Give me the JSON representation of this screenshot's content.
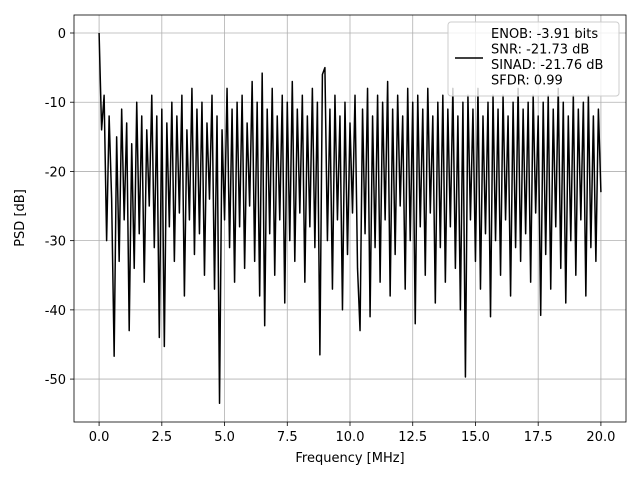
{
  "chart_data": {
    "type": "line",
    "xlabel": "Frequency [MHz]",
    "ylabel": "PSD [dB]",
    "x": [
      0,
      0.1,
      0.2,
      0.3,
      0.4,
      0.5,
      0.6,
      0.7,
      0.8,
      0.9,
      1,
      1.1,
      1.2,
      1.3,
      1.4,
      1.5,
      1.6,
      1.7,
      1.8,
      1.9,
      2,
      2.1,
      2.2,
      2.3,
      2.4,
      2.5,
      2.6,
      2.7,
      2.8,
      2.9,
      3,
      3.1,
      3.2,
      3.3,
      3.4,
      3.5,
      3.6,
      3.7,
      3.8,
      3.9,
      4,
      4.1,
      4.2,
      4.3,
      4.4,
      4.5,
      4.6,
      4.7,
      4.8,
      4.9,
      5,
      5.1,
      5.2,
      5.3,
      5.4,
      5.5,
      5.6,
      5.7,
      5.8,
      5.9,
      6,
      6.1,
      6.2,
      6.3,
      6.4,
      6.5,
      6.6,
      6.7,
      6.8,
      6.9,
      7,
      7.1,
      7.2,
      7.3,
      7.4,
      7.5,
      7.6,
      7.7,
      7.8,
      7.9,
      8,
      8.1,
      8.2,
      8.3,
      8.4,
      8.5,
      8.6,
      8.7,
      8.8,
      8.9,
      9,
      9.1,
      9.2,
      9.3,
      9.4,
      9.5,
      9.6,
      9.7,
      9.8,
      9.9,
      10,
      10.1,
      10.2,
      10.3,
      10.4,
      10.5,
      10.6,
      10.7,
      10.8,
      10.9,
      11,
      11.1,
      11.2,
      11.3,
      11.4,
      11.5,
      11.6,
      11.7,
      11.8,
      11.9,
      12,
      12.1,
      12.2,
      12.3,
      12.4,
      12.5,
      12.6,
      12.7,
      12.8,
      12.9,
      13,
      13.1,
      13.2,
      13.3,
      13.4,
      13.5,
      13.6,
      13.7,
      13.8,
      13.9,
      14,
      14.1,
      14.2,
      14.3,
      14.4,
      14.5,
      14.6,
      14.7,
      14.8,
      14.9,
      15,
      15.1,
      15.2,
      15.3,
      15.4,
      15.5,
      15.6,
      15.7,
      15.8,
      15.9,
      16,
      16.1,
      16.2,
      16.3,
      16.4,
      16.5,
      16.6,
      16.7,
      16.8,
      16.9,
      17,
      17.1,
      17.2,
      17.3,
      17.4,
      17.5,
      17.6,
      17.7,
      17.8,
      17.9,
      18,
      18.1,
      18.2,
      18.3,
      18.4,
      18.5,
      18.6,
      18.7,
      18.8,
      18.9,
      19,
      19.1,
      19.2,
      19.3,
      19.4,
      19.5,
      19.6,
      19.7,
      19.8,
      19.9,
      20
    ],
    "series": [
      {
        "name": "ENOB: -3.91 bits\nSNR: -21.73 dB\nSINAD: -21.76 dB\nSFDR: 0.99",
        "color": "#000000",
        "values": [
          0,
          -14,
          -9,
          -30,
          -12,
          -24,
          -46.7,
          -15,
          -33,
          -11,
          -27,
          -13,
          -43,
          -16,
          -34,
          -10,
          -29,
          -12,
          -36,
          -14,
          -25,
          -9,
          -31,
          -12,
          -44,
          -11,
          -45.3,
          -13,
          -28,
          -10,
          -33,
          -12,
          -26,
          -9,
          -38,
          -14,
          -27,
          -8,
          -32,
          -11,
          -29,
          -10,
          -35,
          -13,
          -24,
          -9,
          -37,
          -12,
          -53.5,
          -14,
          -27,
          -8,
          -31,
          -11,
          -36,
          -10,
          -28,
          -9,
          -34,
          -13,
          -25,
          -7,
          -33,
          -10,
          -38,
          -5.8,
          -42.3,
          -11,
          -29,
          -8,
          -35,
          -12,
          -27,
          -9,
          -39,
          -10,
          -30,
          -7,
          -33,
          -11,
          -26,
          -9,
          -36,
          -12,
          -28,
          -8,
          -31,
          -10,
          -46.5,
          -6,
          -5,
          -30,
          -11,
          -37,
          -9,
          -27,
          -12,
          -40,
          -10,
          -32,
          -13,
          -26,
          -9,
          -34,
          -43,
          -11,
          -29,
          -8,
          -41,
          -12,
          -31,
          -9,
          -36,
          -10,
          -27,
          -7,
          -38,
          -11,
          -32,
          -9,
          -25,
          -12,
          -37,
          -8,
          -30,
          -10,
          -42,
          -9,
          -28,
          -11,
          -35,
          -8,
          -26,
          -12,
          -39,
          -10,
          -31,
          -9,
          -36,
          -11,
          -28,
          -8,
          -34,
          -12,
          -40,
          -10,
          -49.7,
          -9,
          -27,
          -11,
          -33,
          -8,
          -37,
          -12,
          -29,
          -10,
          -41,
          -9,
          -30,
          -11,
          -35,
          -9,
          -27,
          -12,
          -38,
          -10,
          -31,
          -8,
          -33,
          -11,
          -29,
          -10,
          -36,
          -9,
          -26,
          -12,
          -40.8,
          -10,
          -32,
          -9,
          -37,
          -11,
          -28,
          -8,
          -34,
          -10,
          -39,
          -12,
          -30,
          -9,
          -35,
          -11,
          -27,
          -10,
          -38,
          -9,
          -31,
          -12,
          -33,
          -11,
          -23
        ]
      }
    ],
    "xlim": [
      -1,
      21
    ],
    "ylim": [
      -56.2,
      2.6
    ],
    "xticks": [
      {
        "value": 0,
        "label": "0.0"
      },
      2.5,
      {
        "value": 5,
        "label": "5.0"
      },
      7.5,
      {
        "value": 10,
        "label": "10.0"
      },
      12.5,
      {
        "value": 15,
        "label": "15.0"
      },
      17.5,
      {
        "value": 20,
        "label": "20.0"
      }
    ],
    "yticks": [
      0,
      -10,
      -20,
      -30,
      -40,
      -50
    ],
    "grid": true,
    "legend": "upper right"
  }
}
